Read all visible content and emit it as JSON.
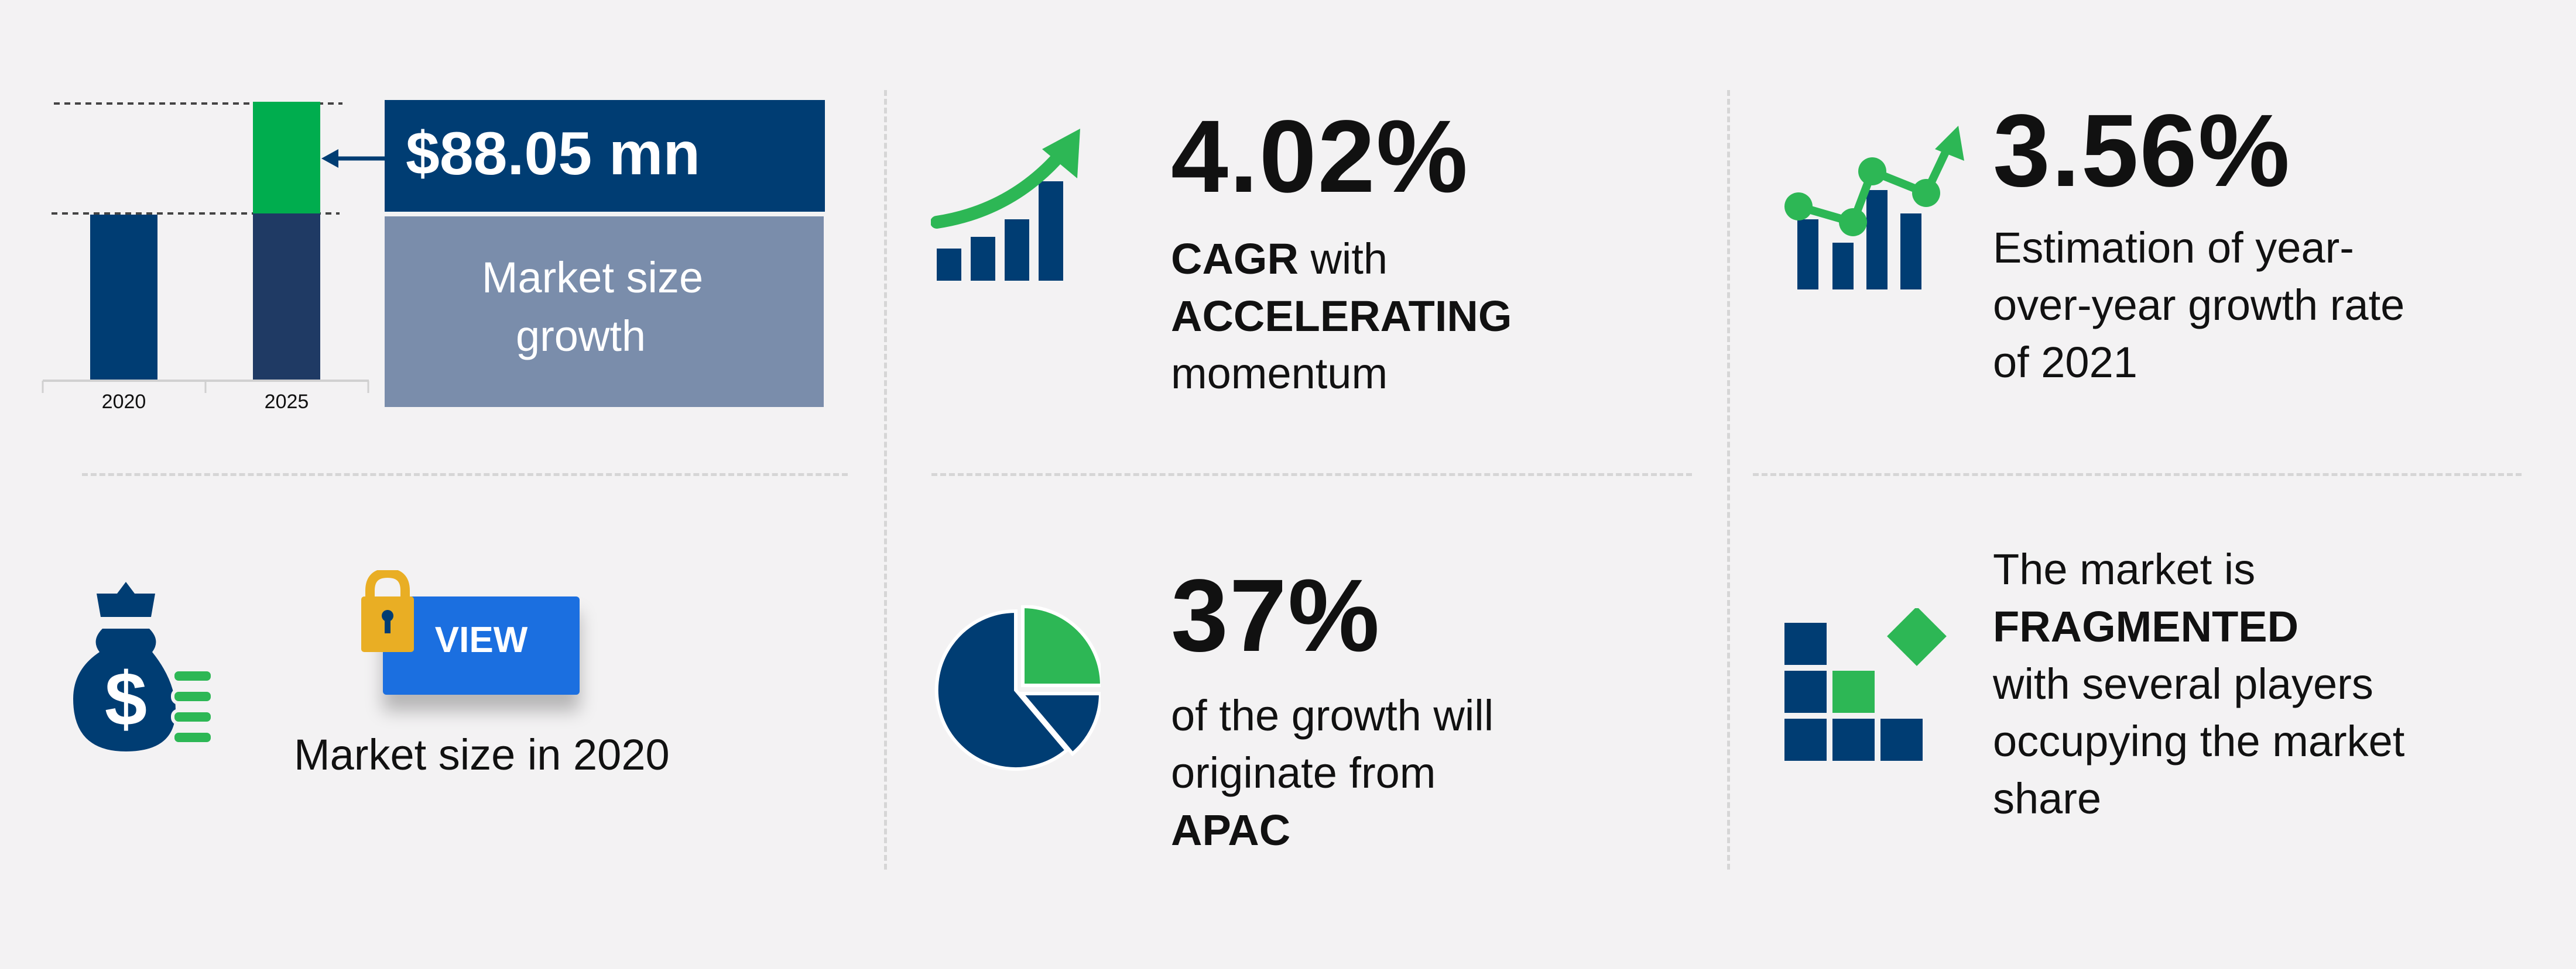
{
  "market_growth": {
    "value": "$88.05 mn",
    "label_line1": "Market size",
    "label_line2": "growth",
    "years": [
      "2020",
      "2025"
    ],
    "colors": {
      "base": "#003d73",
      "base_2025": "#1f3a64",
      "increment": "#00ad4e",
      "value_box": "#003d73",
      "label_box": "#7a8dab"
    }
  },
  "cagr": {
    "value": "4.02%",
    "line1_bold": "CAGR",
    "line1_rest": " with",
    "line2_bold": "ACCELERATING",
    "line3": "momentum",
    "icon": "growth-bar-chart-arrow-icon"
  },
  "yoy": {
    "value": "3.56%",
    "line1": "Estimation of year-",
    "line2": "over-year growth rate",
    "line3": "of 2021",
    "icon": "line-bar-chart-icon"
  },
  "market_size_2020": {
    "button_label": "VIEW",
    "caption": "Market size in 2020",
    "icons": [
      "money-bag-icon",
      "lock-icon"
    ],
    "button_color": "#1b6fe0"
  },
  "region": {
    "value": "37%",
    "line1": "of the growth will",
    "line2": "originate from",
    "line3_bold": "APAC",
    "icon": "pie-chart-icon"
  },
  "vendor_landscape": {
    "line1": "The market is",
    "line2_bold": "FRAGMENTED",
    "line3": "with several players",
    "line4": "occupying the market",
    "line5": "share",
    "icon": "fragmented-blocks-icon"
  },
  "accent_green": "#2db755",
  "accent_navy": "#003d73"
}
